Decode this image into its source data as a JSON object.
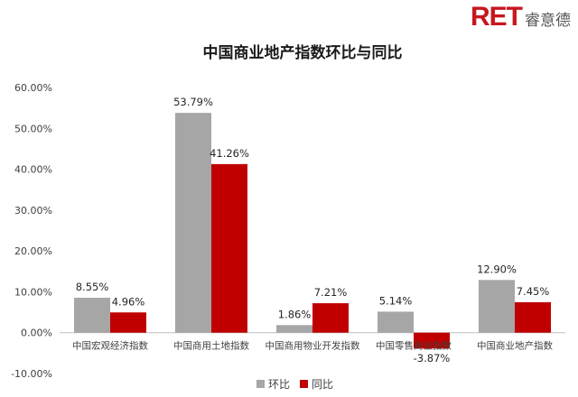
{
  "brand": {
    "ret": "RET",
    "cn": "睿意德"
  },
  "chart_data": {
    "type": "bar",
    "title": "中国商业地产指数环比与同比",
    "categories": [
      "中国宏观经济指数",
      "中国商用土地指数",
      "中国商用物业开发指数",
      "中国零售商业指数",
      "中国商业地产指数"
    ],
    "series": [
      {
        "name": "环比",
        "color": "#a6a6a6",
        "values": [
          8.55,
          53.79,
          1.86,
          5.14,
          12.9
        ],
        "labels": [
          "8.55%",
          "53.79%",
          "1.86%",
          "5.14%",
          "12.90%"
        ]
      },
      {
        "name": "同比",
        "color": "#c00000",
        "values": [
          4.96,
          41.26,
          7.21,
          -3.87,
          7.45
        ],
        "labels": [
          "4.96%",
          "41.26%",
          "7.21%",
          "-3.87%",
          "7.45%"
        ]
      }
    ],
    "ylim": [
      -10,
      60
    ],
    "yticks": [
      "-10.00%",
      "0.00%",
      "10.00%",
      "20.00%",
      "30.00%",
      "40.00%",
      "50.00%",
      "60.00%"
    ],
    "grid": false,
    "legend": "bottom"
  }
}
